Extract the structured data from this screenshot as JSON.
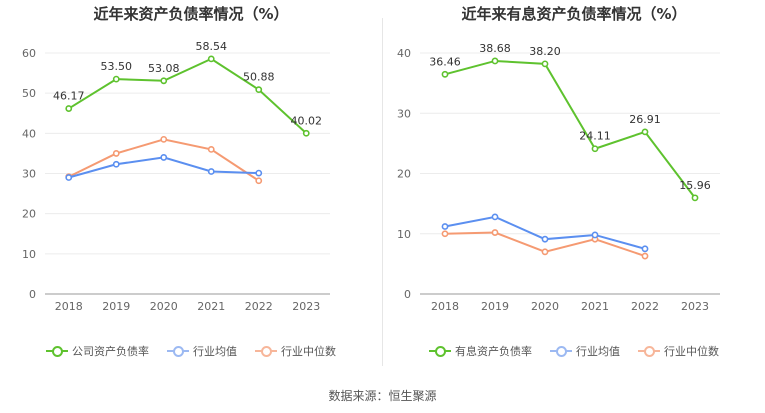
{
  "source": "数据来源：恒生聚源",
  "chart_data": [
    {
      "type": "line",
      "title": "近年来资产负债率情况（%）",
      "categories": [
        "2018",
        "2019",
        "2020",
        "2021",
        "2022",
        "2023"
      ],
      "ylim": [
        0,
        60
      ],
      "yticks": [
        0,
        10,
        20,
        30,
        40,
        50,
        60
      ],
      "grid": true,
      "legend_position": "bottom",
      "series": [
        {
          "name": "公司资产负债率",
          "color": "#5ec22e",
          "values": [
            46.17,
            53.5,
            53.08,
            58.54,
            50.88,
            40.02
          ],
          "labels": [
            "46.17",
            "53.50",
            "53.08",
            "58.54",
            "50.88",
            "40.02"
          ]
        },
        {
          "name": "行业均值",
          "color": "#5b8ff0",
          "values": [
            29.0,
            32.3,
            34.0,
            30.5,
            30.1,
            null
          ]
        },
        {
          "name": "行业中位数",
          "color": "#f59a72",
          "values": [
            29.2,
            35.0,
            38.5,
            36.0,
            28.2,
            null
          ]
        }
      ]
    },
    {
      "type": "line",
      "title": "近年来有息资产负债率情况（%）",
      "categories": [
        "2018",
        "2019",
        "2020",
        "2021",
        "2022",
        "2023"
      ],
      "ylim": [
        0,
        40
      ],
      "yticks": [
        0,
        10,
        20,
        30,
        40
      ],
      "grid": true,
      "legend_position": "bottom",
      "series": [
        {
          "name": "有息资产负债率",
          "color": "#5ec22e",
          "values": [
            36.46,
            38.68,
            38.2,
            24.11,
            26.91,
            15.96
          ],
          "labels": [
            "36.46",
            "38.68",
            "38.20",
            "24.11",
            "26.91",
            "15.96"
          ]
        },
        {
          "name": "行业均值",
          "color": "#5b8ff0",
          "values": [
            11.2,
            12.8,
            9.1,
            9.8,
            7.5,
            null
          ]
        },
        {
          "name": "行业中位数",
          "color": "#f59a72",
          "values": [
            10.0,
            10.2,
            7.0,
            9.1,
            6.3,
            null
          ]
        }
      ]
    }
  ]
}
